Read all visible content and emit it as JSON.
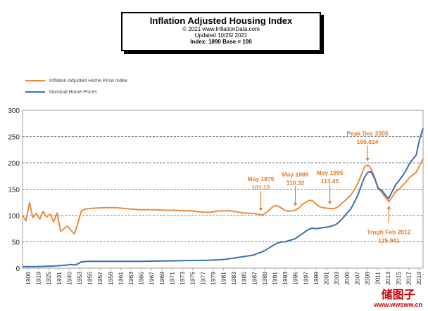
{
  "chart_data": {
    "type": "line",
    "title": "Inflation Adjusted Housing Index",
    "subtitle_lines": [
      "© 2021  www.InflationData.com",
      "Updated  10/25/ 2021",
      "Index: 1890 Base = 100"
    ],
    "ylim": [
      0,
      300
    ],
    "y_ticks": [
      0,
      50,
      100,
      150,
      200,
      250,
      300
    ],
    "xlim": [
      1906,
      2022
    ],
    "x_tick_labels": [
      "1906",
      "1919",
      "1925",
      "1931",
      "1940",
      "1953",
      "1955",
      "1957",
      "1959",
      "1961",
      "1963",
      "1965",
      "1967",
      "1969",
      "1971",
      "1973",
      "1975",
      "1977",
      "1979",
      "1981",
      "1983",
      "1985",
      "1987",
      "1989",
      "1991",
      "1993",
      "1995",
      "1997",
      "1999",
      "2001",
      "2003",
      "2005",
      "2007",
      "2009",
      "2011",
      "2013",
      "2015",
      "2017",
      "2019"
    ],
    "grid": "horizontal-dashed",
    "legend_position": "top-left",
    "series": [
      {
        "name": "Inflation Adjusted Home Price Index",
        "color": "#ea8c3e",
        "points": [
          [
            1906,
            100
          ],
          [
            1907,
            90
          ],
          [
            1908,
            124
          ],
          [
            1909,
            96
          ],
          [
            1910,
            104
          ],
          [
            1911,
            93
          ],
          [
            1912,
            108
          ],
          [
            1913,
            97
          ],
          [
            1914,
            103
          ],
          [
            1915,
            88
          ],
          [
            1916,
            105
          ],
          [
            1917,
            70
          ],
          [
            1918,
            75
          ],
          [
            1919,
            80
          ],
          [
            1920,
            72
          ],
          [
            1921,
            65
          ],
          [
            1922,
            85
          ],
          [
            1923,
            108
          ],
          [
            1924,
            112
          ],
          [
            1925,
            113
          ],
          [
            1927,
            114
          ],
          [
            1930,
            115
          ],
          [
            1933,
            115
          ],
          [
            1936,
            113
          ],
          [
            1940,
            111
          ],
          [
            1944,
            111
          ],
          [
            1948,
            110
          ],
          [
            1950,
            110
          ],
          [
            1953,
            109
          ],
          [
            1955,
            109
          ],
          [
            1957,
            107
          ],
          [
            1960,
            106
          ],
          [
            1962,
            108
          ],
          [
            1964,
            109
          ],
          [
            1966,
            109
          ],
          [
            1968,
            107
          ],
          [
            1970,
            105
          ],
          [
            1972,
            104
          ],
          [
            1973,
            104
          ],
          [
            1974,
            103
          ],
          [
            1975,
            101.12
          ],
          [
            1976,
            103
          ],
          [
            1977,
            108
          ],
          [
            1978,
            114
          ],
          [
            1979,
            119
          ],
          [
            1980,
            118
          ],
          [
            1981,
            114
          ],
          [
            1982,
            110
          ],
          [
            1983,
            108
          ],
          [
            1984,
            109
          ],
          [
            1985,
            110.32
          ],
          [
            1986,
            114
          ],
          [
            1987,
            121
          ],
          [
            1988,
            125
          ],
          [
            1989,
            129
          ],
          [
            1990,
            128
          ],
          [
            1991,
            122
          ],
          [
            1992,
            117
          ],
          [
            1993,
            115
          ],
          [
            1994,
            114
          ],
          [
            1995,
            113.45
          ],
          [
            1996,
            113
          ],
          [
            1997,
            115
          ],
          [
            1998,
            120
          ],
          [
            1999,
            126
          ],
          [
            2000,
            132
          ],
          [
            2001,
            138
          ],
          [
            2002,
            148
          ],
          [
            2003,
            160
          ],
          [
            2004,
            175
          ],
          [
            2005,
            192
          ],
          [
            2005.9,
            195.824
          ],
          [
            2006.5,
            193
          ],
          [
            2007,
            188
          ],
          [
            2008,
            172
          ],
          [
            2009,
            150
          ],
          [
            2010,
            145
          ],
          [
            2011,
            135
          ],
          [
            2012.1,
            125.941
          ],
          [
            2013,
            135
          ],
          [
            2014,
            145
          ],
          [
            2015,
            150
          ],
          [
            2016,
            157
          ],
          [
            2017,
            163
          ],
          [
            2018,
            172
          ],
          [
            2019,
            177
          ],
          [
            2020,
            182
          ],
          [
            2021,
            195
          ],
          [
            2022,
            208
          ]
        ]
      },
      {
        "name": "Nominal Home Prices",
        "color": "#3a6fb0",
        "points": [
          [
            1906,
            3
          ],
          [
            1910,
            3
          ],
          [
            1915,
            4
          ],
          [
            1919,
            6
          ],
          [
            1920,
            7
          ],
          [
            1921,
            6
          ],
          [
            1922,
            8
          ],
          [
            1923,
            12
          ],
          [
            1925,
            13
          ],
          [
            1930,
            13
          ],
          [
            1940,
            13
          ],
          [
            1950,
            14
          ],
          [
            1960,
            15
          ],
          [
            1963,
            16
          ],
          [
            1965,
            17
          ],
          [
            1967,
            19
          ],
          [
            1969,
            21
          ],
          [
            1971,
            23
          ],
          [
            1973,
            25
          ],
          [
            1974,
            28
          ],
          [
            1975,
            30
          ],
          [
            1976,
            33
          ],
          [
            1977,
            37
          ],
          [
            1978,
            41
          ],
          [
            1979,
            45
          ],
          [
            1980,
            48
          ],
          [
            1981,
            50
          ],
          [
            1982,
            50
          ],
          [
            1983,
            52
          ],
          [
            1984,
            54
          ],
          [
            1985,
            56
          ],
          [
            1986,
            61
          ],
          [
            1987,
            65
          ],
          [
            1988,
            70
          ],
          [
            1989,
            74
          ],
          [
            1990,
            76
          ],
          [
            1991,
            75
          ],
          [
            1992,
            76
          ],
          [
            1993,
            77
          ],
          [
            1994,
            78
          ],
          [
            1995,
            79
          ],
          [
            1996,
            81
          ],
          [
            1997,
            84
          ],
          [
            1998,
            90
          ],
          [
            1999,
            97
          ],
          [
            2000,
            105
          ],
          [
            2001,
            112
          ],
          [
            2002,
            124
          ],
          [
            2003,
            137
          ],
          [
            2004,
            155
          ],
          [
            2005,
            172
          ],
          [
            2006,
            182
          ],
          [
            2007,
            183
          ],
          [
            2008,
            170
          ],
          [
            2009,
            152
          ],
          [
            2010,
            148
          ],
          [
            2011,
            140
          ],
          [
            2012,
            132
          ],
          [
            2013,
            145
          ],
          [
            2014,
            158
          ],
          [
            2015,
            166
          ],
          [
            2016,
            175
          ],
          [
            2017,
            185
          ],
          [
            2018,
            198
          ],
          [
            2019,
            207
          ],
          [
            2020,
            215
          ],
          [
            2021,
            245
          ],
          [
            2022,
            266
          ]
        ]
      }
    ],
    "annotations": [
      {
        "lines": [
          "May 1975",
          "101.12"
        ],
        "x": 1975,
        "y": 101.12
      },
      {
        "lines": [
          "May 1985",
          "110.32"
        ],
        "x": 1985,
        "y": 110.32
      },
      {
        "lines": [
          "May 1995",
          "113.45"
        ],
        "x": 1995,
        "y": 113.45
      },
      {
        "lines": [
          "Peak Dec 2005",
          "195.824"
        ],
        "x": 2005.9,
        "y": 195.824
      },
      {
        "lines": [
          "Trugh Feb 2012",
          "125.941"
        ],
        "x": 2012.1,
        "y": 125.941
      }
    ],
    "annotation_color": "#e07b2a"
  },
  "watermark": {
    "line1": "储图子",
    "line2": "www.wwsww.cn"
  }
}
